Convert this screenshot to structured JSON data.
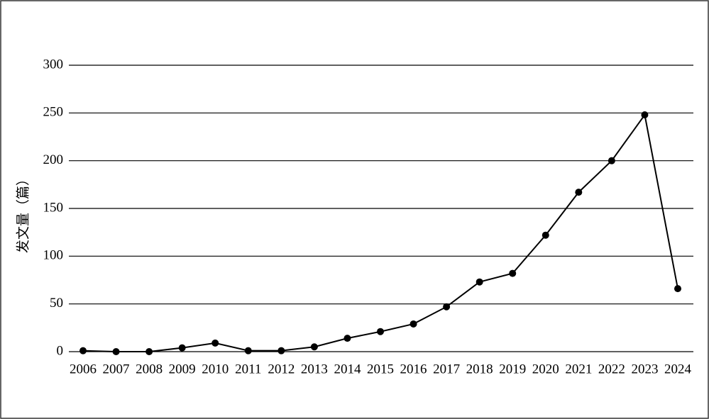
{
  "chart_data": {
    "type": "line",
    "y_label": "发文量（篇）",
    "categories": [
      "2006",
      "2007",
      "2008",
      "2009",
      "2010",
      "2011",
      "2012",
      "2013",
      "2014",
      "2015",
      "2016",
      "2017",
      "2018",
      "2019",
      "2020",
      "2021",
      "2022",
      "2023",
      "2024"
    ],
    "values": [
      1,
      0,
      0,
      4,
      9,
      1,
      1,
      5,
      14,
      21,
      29,
      47,
      73,
      82,
      122,
      167,
      200,
      248,
      66
    ],
    "color": "#000000",
    "ylim": [
      0,
      300
    ],
    "yticks": [
      0,
      50,
      100,
      150,
      200,
      250,
      300
    ],
    "grid": true
  }
}
